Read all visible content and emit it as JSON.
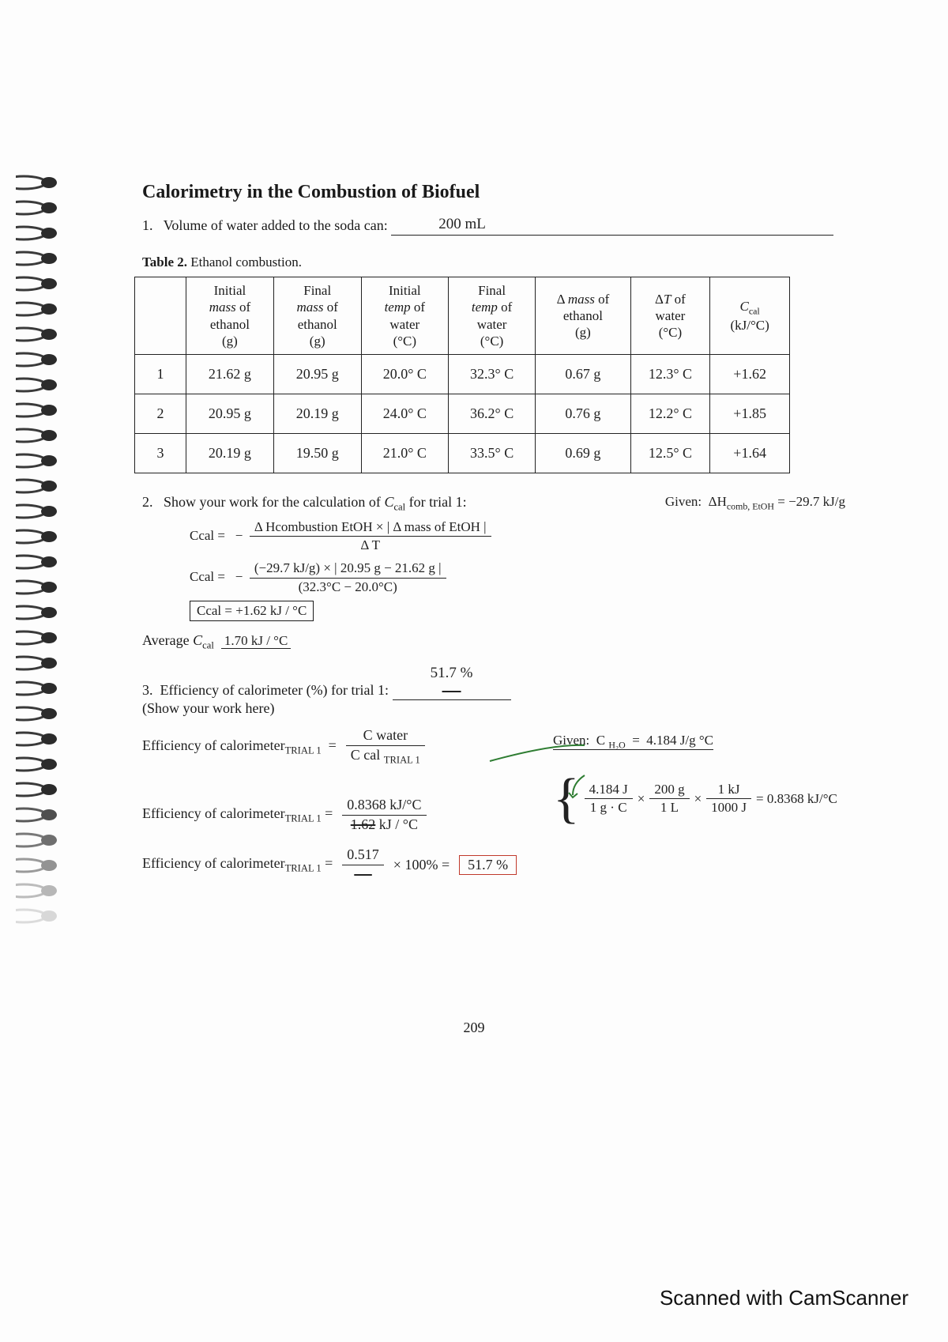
{
  "title": "Calorimetry in the Combustion of Biofuel",
  "q1": {
    "num": "1.",
    "text": "Volume of water added to the soda can:",
    "answer": "200 mL"
  },
  "tableCaption": {
    "bold": "Table 2.",
    "rest": " Ethanol combustion."
  },
  "columns": {
    "c0": "",
    "c1": "Initial mass of ethanol (g)",
    "c1_html": "Initial<br><i>mass</i> of<br>ethanol<br>(g)",
    "c2_html": "Final<br><i>mass</i> of<br>ethanol<br>(g)",
    "c3_html": "Initial<br><i>temp</i> of<br>water<br>(°C)",
    "c4_html": "Final<br><i>temp</i> of<br>water<br>(°C)",
    "c5_html": "Δ <i>mass</i> of<br>ethanol<br>(g)",
    "c6_html": "Δ<i>T</i> of<br>water<br>(°C)",
    "c7_html": "<i>C</i><sub>cal</sub><br>(kJ/°C)"
  },
  "rows": [
    {
      "trial": "1",
      "mi": "21.62 g",
      "mf": "20.95 g",
      "ti": "20.0° C",
      "tf": "32.3° C",
      "dm": "0.67 g",
      "dt": "12.3° C",
      "ccal": "+1.62"
    },
    {
      "trial": "2",
      "mi": "20.95 g",
      "mf": "20.19 g",
      "ti": "24.0° C",
      "tf": "36.2° C",
      "dm": "0.76 g",
      "dt": "12.2° C",
      "ccal": "+1.85"
    },
    {
      "trial": "3",
      "mi": "20.19 g",
      "mf": "19.50 g",
      "ti": "21.0° C",
      "tf": "33.5° C",
      "dm": "0.69 g",
      "dt": "12.5° C",
      "ccal": "+1.64"
    }
  ],
  "q2": {
    "num": "2.",
    "prompt": "Show your work for the calculation of Ccal for trial 1:",
    "given": "Given:  ΔHcomb, EtOH = −29.7 kJ/g",
    "formula_num": "Δ Hcombustion EtOH  ×  | Δ mass of EtOH |",
    "formula_den": "Δ T",
    "lhs": "Ccal =",
    "neg": "−",
    "plug_num": "(−29.7 kJ/g)  ×  | 20.95 g − 21.62 g |",
    "plug_den": "(32.3°C − 20.0°C)",
    "result_box": "Ccal = +1.62 kJ / °C"
  },
  "avg": {
    "label": "Average Ccal",
    "value": "1.70 kJ / °C"
  },
  "q3": {
    "num": "3.",
    "prompt": "Efficiency of calorimeter (%) for trial 1:",
    "answer": "51.7 %",
    "sub": "(Show your work here)",
    "given": "Given:  C H₂O  =  4.184 J/g °C",
    "row1_lhs": "Efficiency of calorimeter TRIAL 1  =",
    "row1_num": "C water",
    "row1_den": "C cal TRIAL 1",
    "cwater_calc_a": "4.184 J",
    "cwater_calc_b": "1 g · C",
    "cwater_calc_c": "200 g",
    "cwater_calc_d": "1 L",
    "cwater_calc_e": "1 kJ",
    "cwater_calc_f": "1000 J",
    "cwater_result": "= 0.8368 kJ/°C",
    "row2_lhs": "Efficiency of calorimeter TRIAL 1 =",
    "row2_num": "0.8368 kJ/°C",
    "row2_den": "1.62 kJ / °C",
    "row3_lhs": "Efficiency of calorimeter TRIAL 1 =",
    "row3_val": "0.517",
    "row3_mid": "× 100% =",
    "row3_ans": "51.7 %"
  },
  "pageNumber": "209",
  "scanner": "Scanned with CamScanner"
}
